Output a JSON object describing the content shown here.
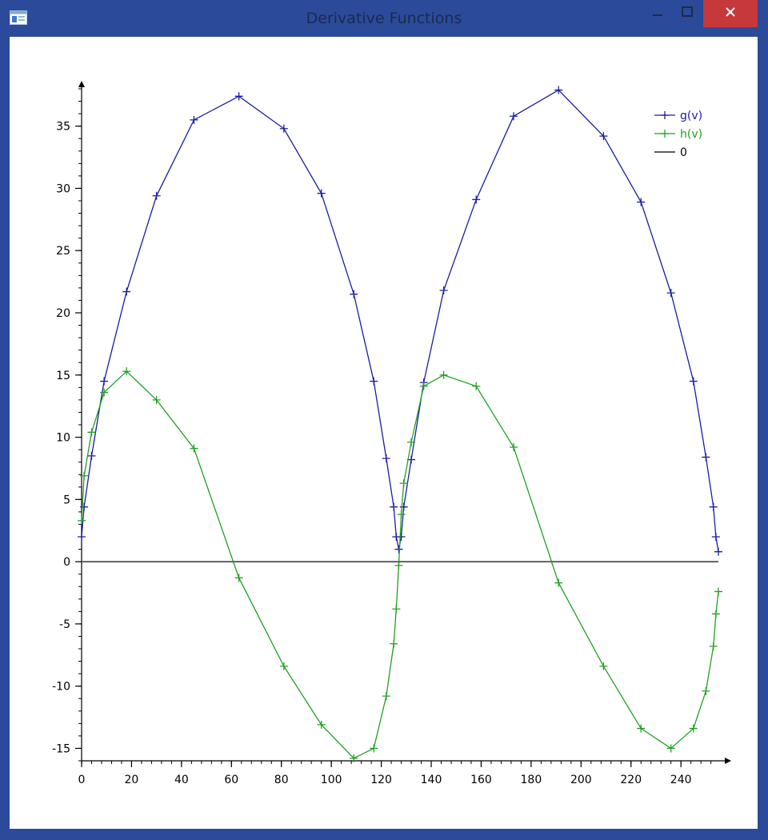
{
  "window": {
    "title": "Derivative Functions",
    "icons": {
      "app": "app-window-icon",
      "minimize": "minimize-icon",
      "maximize": "maximize-icon",
      "close": "close-icon"
    },
    "colors": {
      "frame": "#2b4a9a",
      "close_button": "#c7383b"
    }
  },
  "chart_data": {
    "type": "line",
    "title": "",
    "xlabel": "",
    "ylabel": "",
    "xlim": [
      0,
      255
    ],
    "ylim": [
      -16,
      38
    ],
    "xticks": [
      0,
      20,
      40,
      60,
      80,
      100,
      120,
      140,
      160,
      180,
      200,
      220,
      240
    ],
    "yticks": [
      -15,
      -10,
      -5,
      0,
      5,
      10,
      15,
      20,
      25,
      30,
      35
    ],
    "grid": false,
    "legend": "top-right",
    "series": [
      {
        "name": "g(v)",
        "color": "#1a1ea0",
        "marker": "plus",
        "points": [
          [
            0,
            2.0
          ],
          [
            1,
            4.4
          ],
          [
            4,
            8.5
          ],
          [
            9,
            14.5
          ],
          [
            18,
            21.7
          ],
          [
            30,
            29.4
          ],
          [
            45,
            35.5
          ],
          [
            63,
            37.4
          ],
          [
            81,
            34.8
          ],
          [
            96,
            29.6
          ],
          [
            109,
            21.5
          ],
          [
            117,
            14.5
          ],
          [
            122,
            8.3
          ],
          [
            125,
            4.4
          ],
          [
            126,
            2.0
          ],
          [
            127,
            1.0
          ],
          [
            128,
            2.0
          ],
          [
            129,
            4.4
          ],
          [
            132,
            8.2
          ],
          [
            137,
            14.4
          ],
          [
            145,
            21.8
          ],
          [
            158,
            29.1
          ],
          [
            173,
            35.8
          ],
          [
            191,
            37.9
          ],
          [
            209,
            34.2
          ],
          [
            224,
            28.9
          ],
          [
            236,
            21.6
          ],
          [
            245,
            14.5
          ],
          [
            250,
            8.4
          ],
          [
            253,
            4.4
          ],
          [
            254,
            2.0
          ],
          [
            255,
            0.8
          ]
        ]
      },
      {
        "name": "h(v)",
        "color": "#22a022",
        "marker": "plus",
        "points": [
          [
            0,
            3.3
          ],
          [
            1,
            6.9
          ],
          [
            4,
            10.4
          ],
          [
            9,
            13.6
          ],
          [
            18,
            15.3
          ],
          [
            30,
            13.0
          ],
          [
            45,
            9.1
          ],
          [
            63,
            -1.3
          ],
          [
            81,
            -8.4
          ],
          [
            96,
            -13.1
          ],
          [
            109,
            -15.8
          ],
          [
            117,
            -15.0
          ],
          [
            122,
            -10.8
          ],
          [
            125,
            -6.6
          ],
          [
            126,
            -3.8
          ],
          [
            127,
            -0.3
          ],
          [
            128,
            3.8
          ],
          [
            129,
            6.3
          ],
          [
            132,
            9.6
          ],
          [
            137,
            14.1
          ],
          [
            145,
            15.0
          ],
          [
            158,
            14.1
          ],
          [
            173,
            9.2
          ],
          [
            191,
            -1.7
          ],
          [
            209,
            -8.4
          ],
          [
            224,
            -13.4
          ],
          [
            236,
            -15.0
          ],
          [
            245,
            -13.4
          ],
          [
            250,
            -10.4
          ],
          [
            253,
            -6.8
          ],
          [
            254,
            -4.2
          ],
          [
            255,
            -2.4
          ]
        ]
      },
      {
        "name": "0",
        "color": "#606060",
        "marker": "none",
        "points": [
          [
            0,
            0
          ],
          [
            255,
            0
          ]
        ]
      }
    ]
  }
}
